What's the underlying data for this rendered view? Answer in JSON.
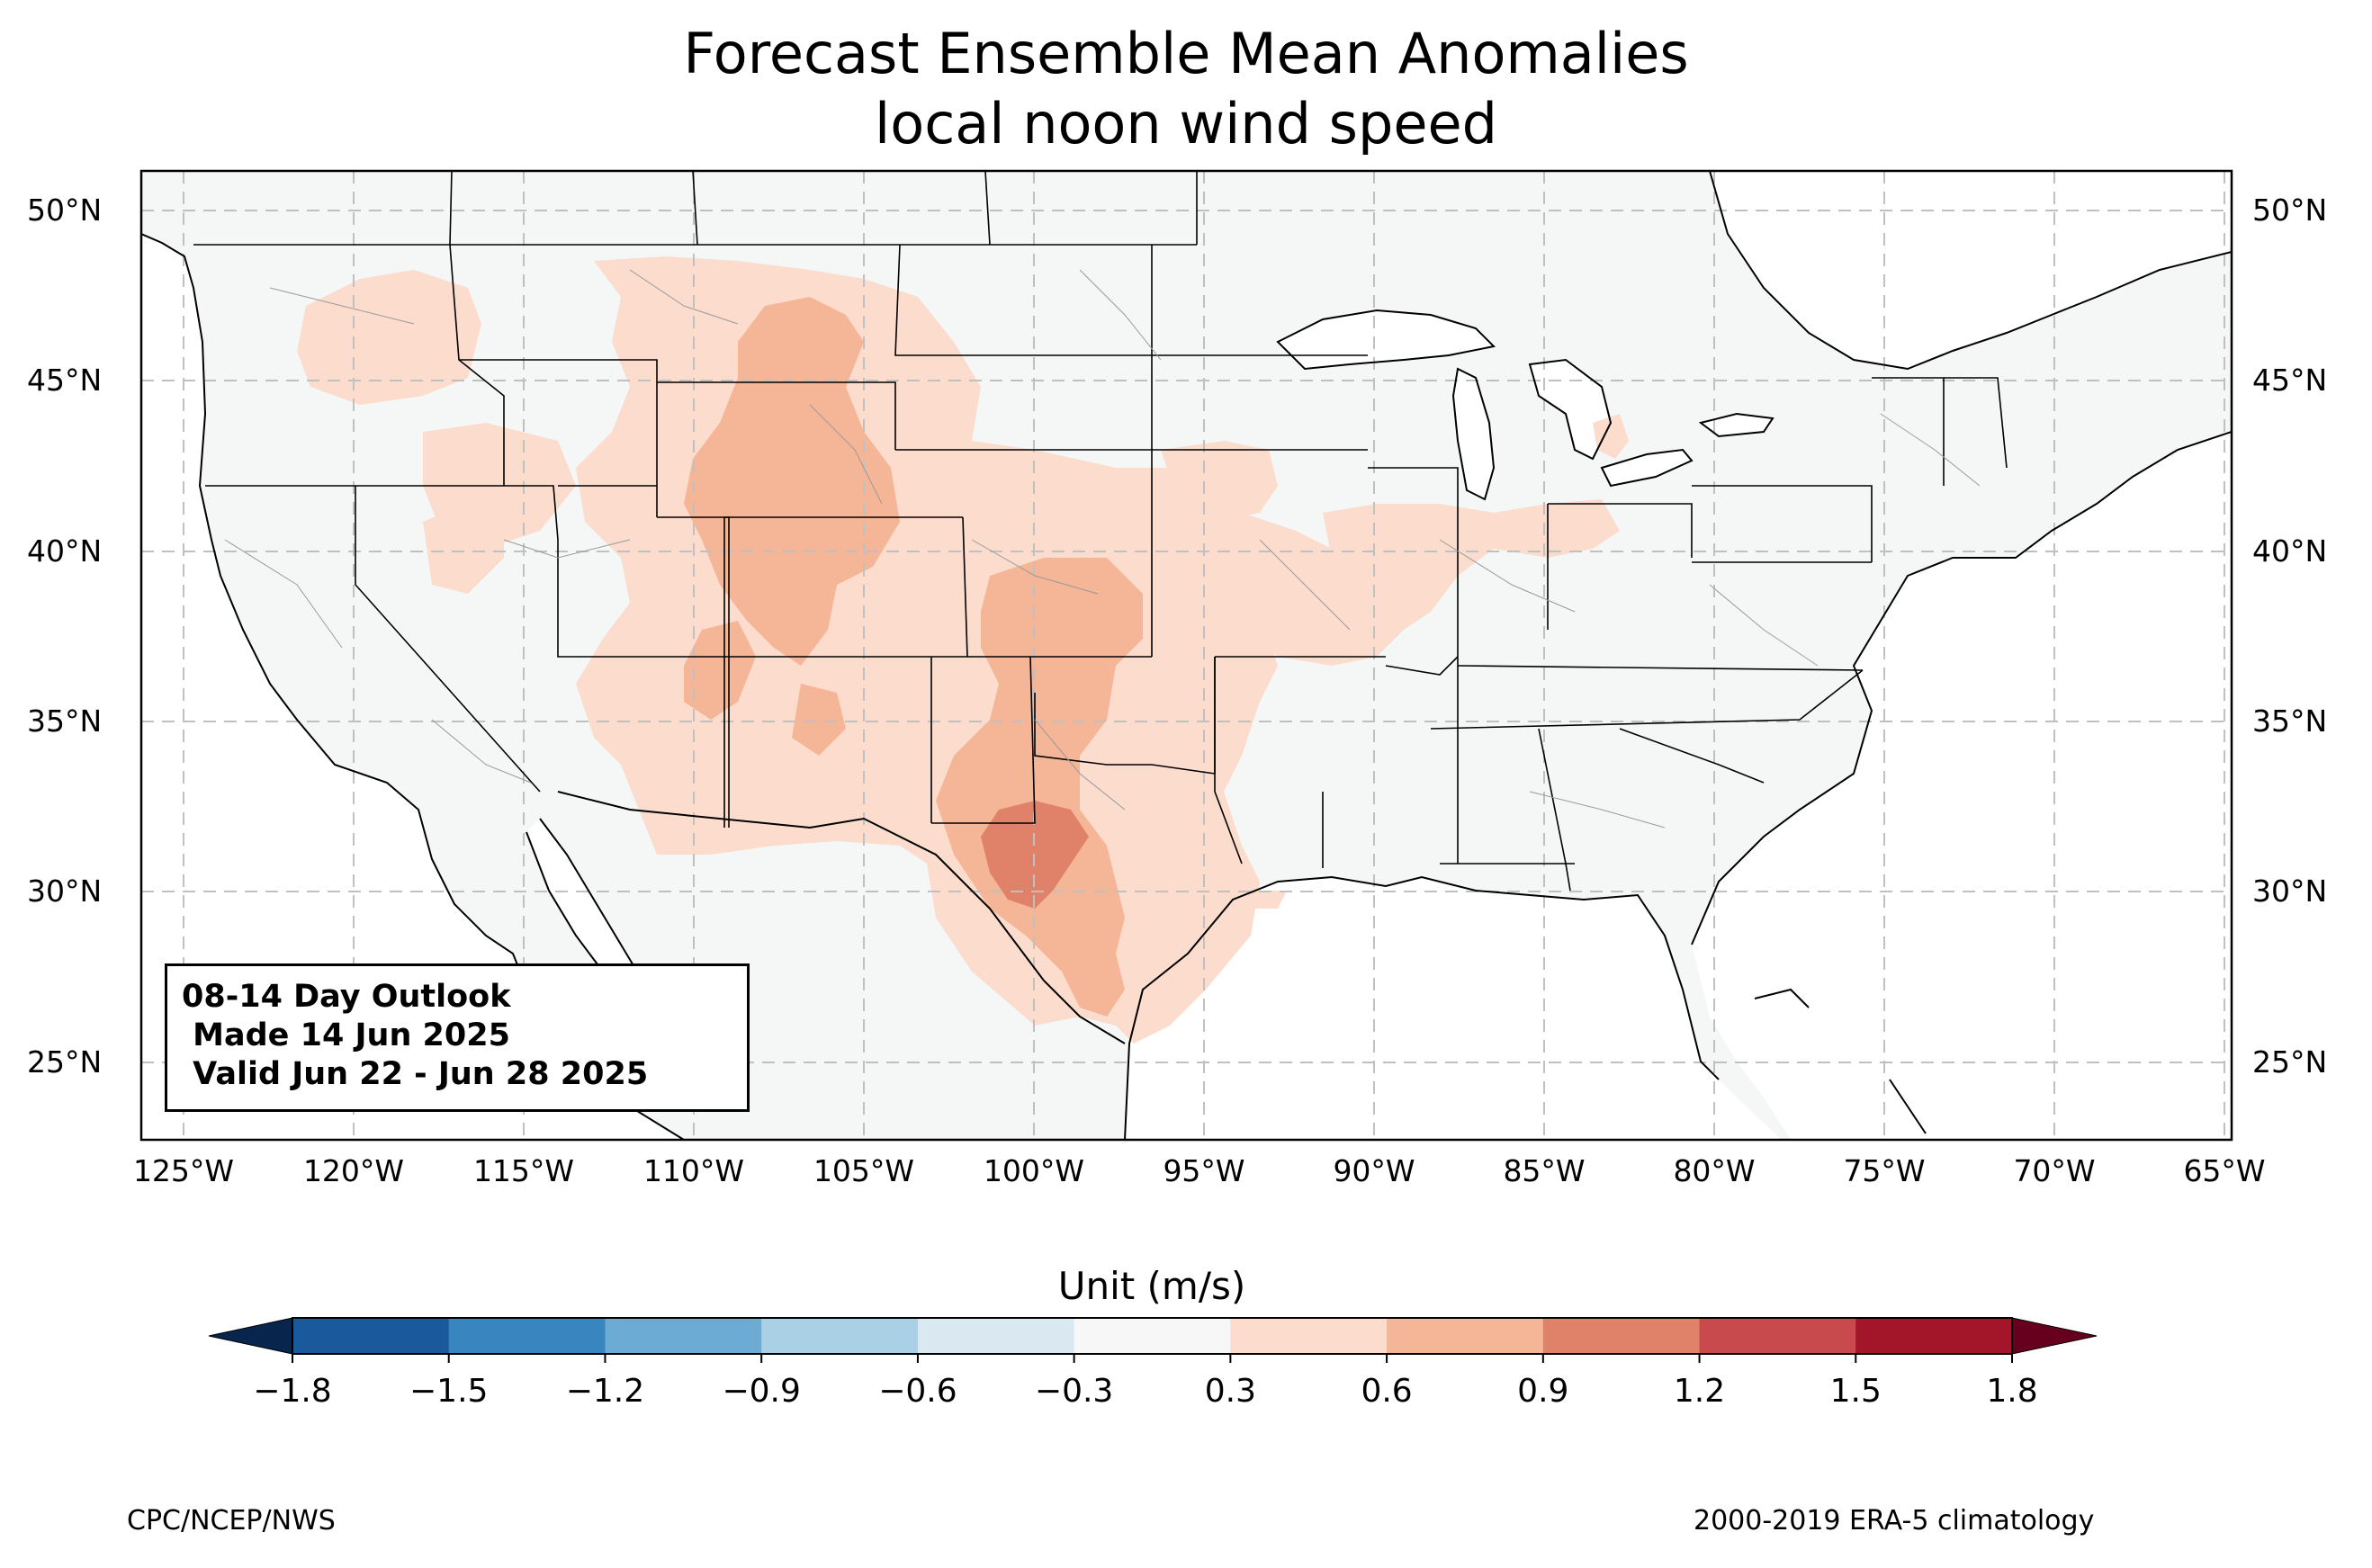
{
  "title": {
    "line1": "Forecast Ensemble Mean Anomalies",
    "line2": "local noon wind speed"
  },
  "outlook": {
    "line1": "08-14 Day Outlook",
    "line2": " Made 14 Jun 2025",
    "line3": " Valid Jun 22 - Jun 28 2025"
  },
  "lat_labels": [
    "50°N",
    "45°N",
    "40°N",
    "35°N",
    "30°N",
    "25°N"
  ],
  "lon_labels": [
    "125°W",
    "120°W",
    "115°W",
    "110°W",
    "105°W",
    "100°W",
    "95°W",
    "90°W",
    "85°W",
    "80°W",
    "75°W",
    "70°W",
    "65°W"
  ],
  "colorbar": {
    "title": "Unit (m/s)",
    "ticks": [
      "−1.8",
      "−1.5",
      "−1.2",
      "−0.9",
      "−0.6",
      "−0.3",
      "0.3",
      "0.6",
      "0.9",
      "1.2",
      "1.5",
      "1.8"
    ],
    "colors": [
      "#1a5a9c",
      "#3985c0",
      "#6cabd4",
      "#a9d0e5",
      "#dae8f1",
      "#f7f7f7",
      "#fbdccd",
      "#f5b597",
      "#e0816a",
      "#c94a4c",
      "#a3162a"
    ],
    "under_color": "#08264d",
    "over_color": "#67001f"
  },
  "footer": {
    "left": "CPC/NCEP/NWS",
    "right": "2000-2019 ERA-5 climatology"
  },
  "map": {
    "land_color": "#f5f7f7",
    "ocean_color": "#ffffff"
  }
}
